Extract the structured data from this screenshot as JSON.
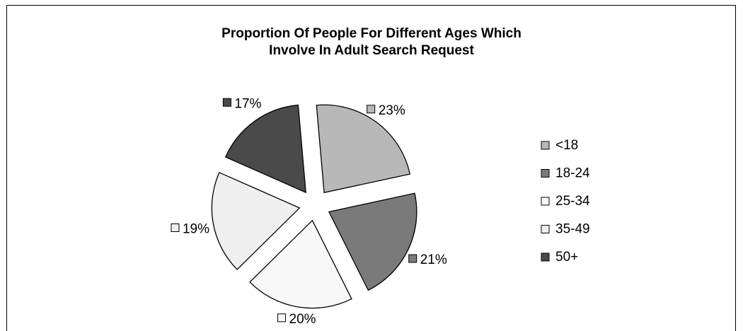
{
  "chart_data": {
    "type": "pie",
    "title": "Proportion Of People For Different Ages Which\nInvolve In Adult Search Request",
    "title_lines": [
      "Proportion Of People For Different Ages Which",
      "Involve In Adult Search Request"
    ],
    "categories": [
      "<18",
      "18-24",
      "25-34",
      "35-49",
      "50+"
    ],
    "values": [
      23,
      21,
      20,
      19,
      17
    ],
    "labels": [
      "23%",
      "21%",
      "20%",
      "19%",
      "17%"
    ],
    "colors": [
      "#b8b8b8",
      "#7a7a7a",
      "#f8f8f8",
      "#efefef",
      "#4a4a4a"
    ],
    "exploded": true,
    "legend_position": "right"
  }
}
